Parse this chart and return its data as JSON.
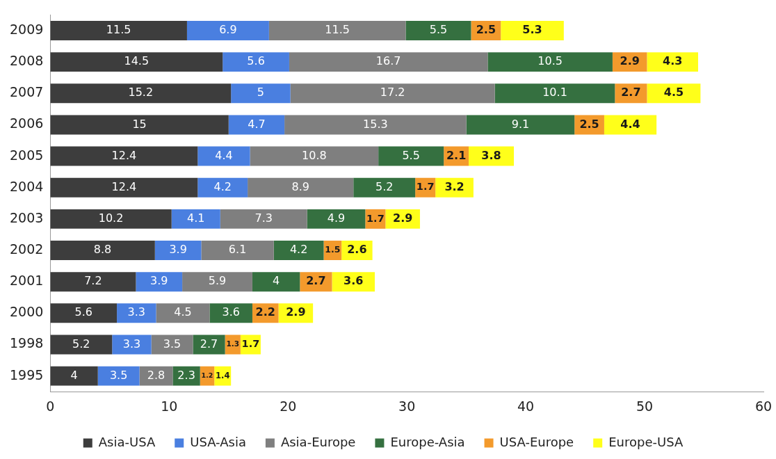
{
  "chart_data": {
    "type": "bar",
    "orientation": "horizontal",
    "stacked": true,
    "data_labels": true,
    "grid": false,
    "legend": "bottom",
    "categories": [
      "2009",
      "2008",
      "2007",
      "2006",
      "2005",
      "2004",
      "2003",
      "2002",
      "2001",
      "2000",
      "1998",
      "1995"
    ],
    "xlim": [
      0,
      60
    ],
    "xticks": [
      0,
      10,
      20,
      30,
      40,
      50,
      60
    ],
    "series": [
      {
        "name": "Asia-USA",
        "color": "#3d3d3d",
        "values": [
          11.5,
          14.5,
          15.2,
          15,
          12.4,
          12.4,
          10.2,
          8.8,
          7.2,
          5.6,
          5.2,
          4
        ]
      },
      {
        "name": "USA-Asia",
        "color": "#4a7fe0",
        "values": [
          6.9,
          5.6,
          5,
          4.7,
          4.4,
          4.2,
          4.1,
          3.9,
          3.9,
          3.3,
          3.3,
          3.5
        ]
      },
      {
        "name": "Asia-Europe",
        "color": "#7f7f7f",
        "values": [
          11.5,
          16.7,
          17.2,
          15.3,
          10.8,
          8.9,
          7.3,
          6.1,
          5.9,
          4.5,
          3.5,
          2.8
        ]
      },
      {
        "name": "Europe-Asia",
        "color": "#357040",
        "values": [
          5.5,
          10.5,
          10.1,
          9.1,
          5.5,
          5.2,
          4.9,
          4.2,
          4,
          3.6,
          2.7,
          2.3
        ]
      },
      {
        "name": "USA-Europe",
        "color": "#f39a2c",
        "values": [
          2.5,
          2.9,
          2.7,
          2.5,
          2.1,
          1.7,
          1.7,
          1.5,
          2.7,
          2.2,
          1.3,
          1.2
        ]
      },
      {
        "name": "Europe-USA",
        "color": "#ffff1a",
        "values": [
          5.3,
          4.3,
          4.5,
          4.4,
          3.8,
          3.2,
          2.9,
          2.6,
          3.6,
          2.9,
          1.7,
          1.4
        ]
      }
    ]
  }
}
